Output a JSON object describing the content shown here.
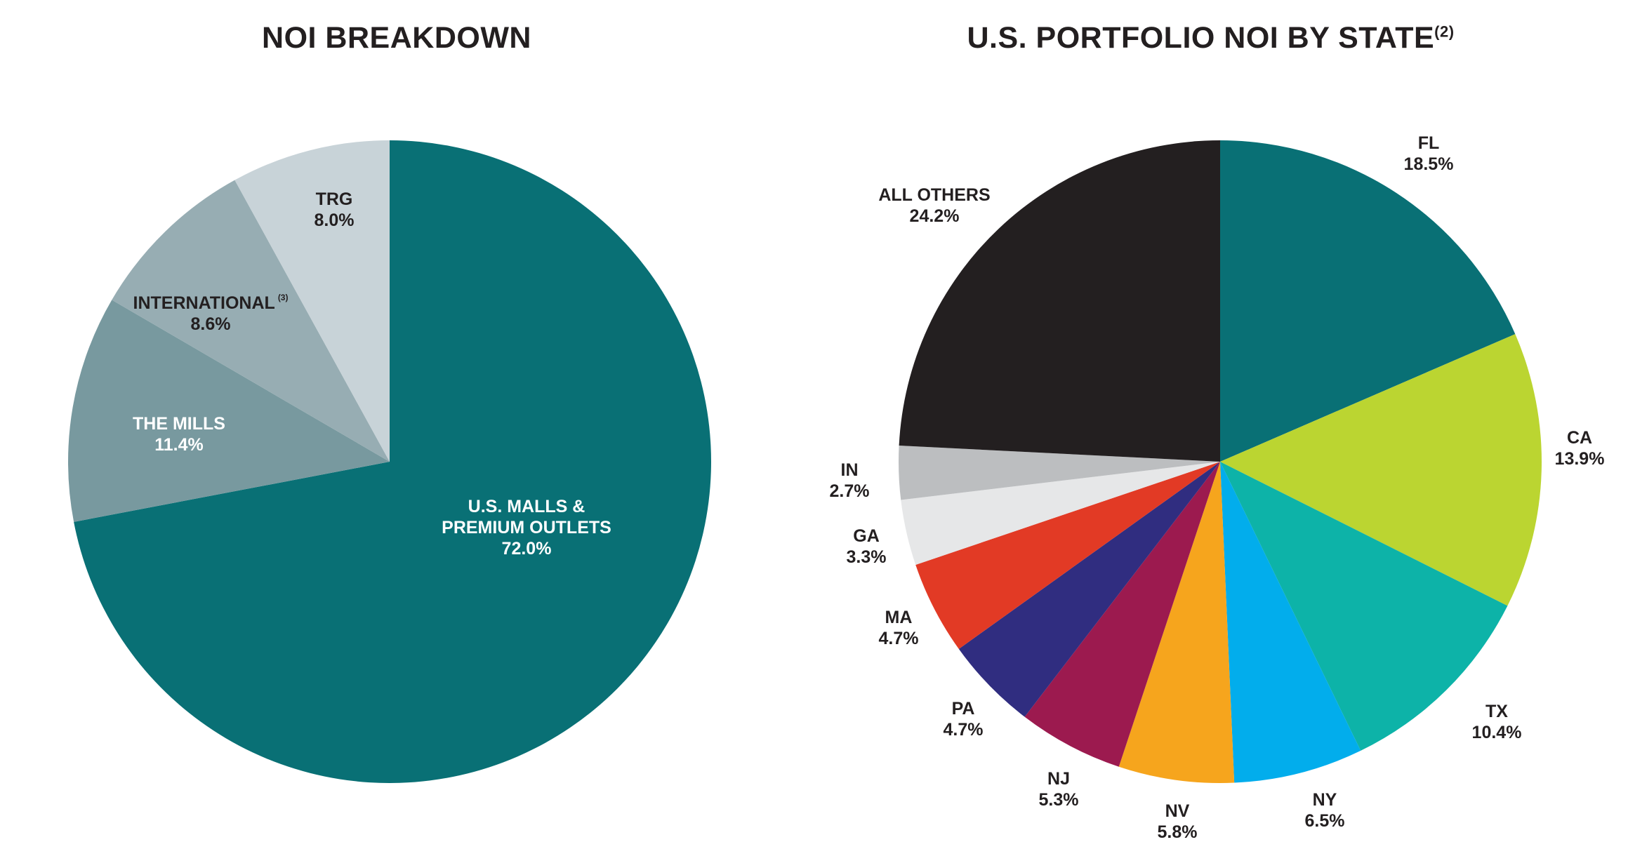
{
  "chart_data": [
    {
      "type": "pie",
      "title": "NOI BREAKDOWN",
      "title_sup": "",
      "slices": [
        {
          "label": "U.S. MALLS &",
          "label2": "PREMIUM OUTLETS",
          "sup": "",
          "value": 72.0,
          "value_text": "72.0%",
          "color": "#097075",
          "text_color": "#ffffff"
        },
        {
          "label": "THE MILLS",
          "label2": "",
          "sup": "",
          "value": 11.4,
          "value_text": "11.4%",
          "color": "#78999f",
          "text_color": "#ffffff"
        },
        {
          "label": "INTERNATIONAL",
          "label2": "",
          "sup": "(3)",
          "value": 8.6,
          "value_text": "8.6%",
          "color": "#97adb3",
          "text_color": "#231f20"
        },
        {
          "label": "TRG",
          "label2": "",
          "sup": "",
          "value": 8.0,
          "value_text": "8.0%",
          "color": "#c8d3d8",
          "text_color": "#231f20"
        }
      ]
    },
    {
      "type": "pie",
      "title": "U.S. PORTFOLIO NOI BY STATE",
      "title_sup": "(2)",
      "slices": [
        {
          "label": "FL",
          "label2": "",
          "sup": "",
          "value": 18.5,
          "value_text": "18.5%",
          "color": "#097075",
          "text_color": "#231f20"
        },
        {
          "label": "CA",
          "label2": "",
          "sup": "",
          "value": 13.9,
          "value_text": "13.9%",
          "color": "#bbd531",
          "text_color": "#231f20"
        },
        {
          "label": "TX",
          "label2": "",
          "sup": "",
          "value": 10.4,
          "value_text": "10.4%",
          "color": "#0db3a8",
          "text_color": "#231f20"
        },
        {
          "label": "NY",
          "label2": "",
          "sup": "",
          "value": 6.5,
          "value_text": "6.5%",
          "color": "#02adec",
          "text_color": "#231f20"
        },
        {
          "label": "NV",
          "label2": "",
          "sup": "",
          "value": 5.8,
          "value_text": "5.8%",
          "color": "#f6a51d",
          "text_color": "#231f20"
        },
        {
          "label": "NJ",
          "label2": "",
          "sup": "",
          "value": 5.3,
          "value_text": "5.3%",
          "color": "#9c1a4f",
          "text_color": "#231f20"
        },
        {
          "label": "PA",
          "label2": "",
          "sup": "",
          "value": 4.7,
          "value_text": "4.7%",
          "color": "#302d80",
          "text_color": "#231f20"
        },
        {
          "label": "MA",
          "label2": "",
          "sup": "",
          "value": 4.7,
          "value_text": "4.7%",
          "color": "#e23a25",
          "text_color": "#231f20"
        },
        {
          "label": "GA",
          "label2": "",
          "sup": "",
          "value": 3.3,
          "value_text": "3.3%",
          "color": "#e6e7e8",
          "text_color": "#231f20"
        },
        {
          "label": "IN",
          "label2": "",
          "sup": "",
          "value": 2.7,
          "value_text": "2.7%",
          "color": "#bcbec0",
          "text_color": "#231f20"
        },
        {
          "label": "ALL OTHERS",
          "label2": "",
          "sup": "",
          "value": 24.2,
          "value_text": "24.2%",
          "color": "#231f20",
          "text_color": "#231f20"
        }
      ]
    }
  ]
}
